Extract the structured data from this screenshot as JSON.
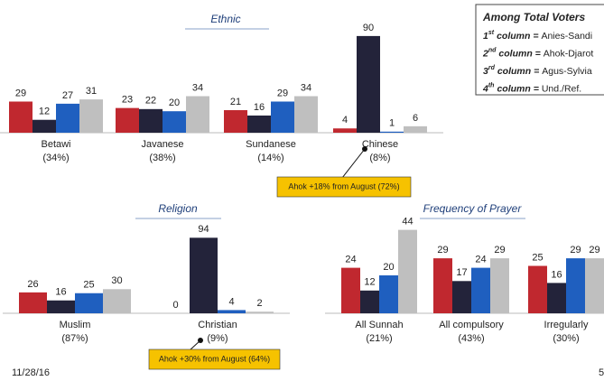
{
  "legend": {
    "title": "Among Total Voters",
    "items": [
      {
        "ordinal": "1",
        "suffix": "st",
        "column": "column ="
      },
      {
        "ordinal": "2",
        "suffix": "nd",
        "column": "column ="
      },
      {
        "ordinal": "3",
        "suffix": "rd",
        "column": "column ="
      },
      {
        "ordinal": "4",
        "suffix": "th",
        "column": "column ="
      }
    ]
  },
  "footer": {
    "date": "11/28/16",
    "page": "5"
  },
  "chart_data": [
    {
      "type": "bar",
      "title": "Ethnic",
      "categories": [
        "Betawi",
        "Javanese",
        "Sundanese",
        "Chinese"
      ],
      "category_shares": [
        "(34%)",
        "(38%)",
        "(14%)",
        "(8%)"
      ],
      "series": [
        {
          "name": "Anies-Sandi",
          "color": "#c0282f",
          "values": [
            29,
            23,
            21,
            4
          ]
        },
        {
          "name": "Ahok-Djarot",
          "color": "#23233a",
          "values": [
            12,
            22,
            16,
            90
          ]
        },
        {
          "name": "Agus-Sylvia",
          "color": "#1f5fbf",
          "values": [
            27,
            20,
            29,
            1
          ]
        },
        {
          "name": "Und./Ref.",
          "color": "#bfbfbf",
          "values": [
            31,
            34,
            34,
            6
          ]
        }
      ],
      "ylim": [
        0,
        100
      ],
      "annotation": "Ahok +18% from August (72%)"
    },
    {
      "type": "bar",
      "title": "Religion",
      "categories": [
        "Muslim",
        "Christian"
      ],
      "category_shares": [
        "(87%)",
        "(9%)"
      ],
      "series": [
        {
          "color": "#c0282f",
          "values": [
            26,
            0
          ]
        },
        {
          "color": "#23233a",
          "values": [
            16,
            94
          ]
        },
        {
          "color": "#1f5fbf",
          "values": [
            25,
            4
          ]
        },
        {
          "color": "#bfbfbf",
          "values": [
            30,
            2
          ]
        }
      ],
      "ylim": [
        0,
        100
      ],
      "annotation": "Ahok +30% from August (64%)"
    },
    {
      "type": "bar",
      "title": "Frequency of Prayer",
      "categories": [
        "All Sunnah",
        "All compulsory",
        "Irregularly"
      ],
      "category_shares": [
        "(21%)",
        "(43%)",
        "(30%)"
      ],
      "series": [
        {
          "color": "#c0282f",
          "values": [
            24,
            29,
            25
          ]
        },
        {
          "color": "#23233a",
          "values": [
            12,
            17,
            16
          ]
        },
        {
          "color": "#1f5fbf",
          "values": [
            20,
            24,
            29
          ]
        },
        {
          "color": "#bfbfbf",
          "values": [
            44,
            29,
            29
          ]
        }
      ],
      "ylim": [
        0,
        50
      ]
    }
  ]
}
